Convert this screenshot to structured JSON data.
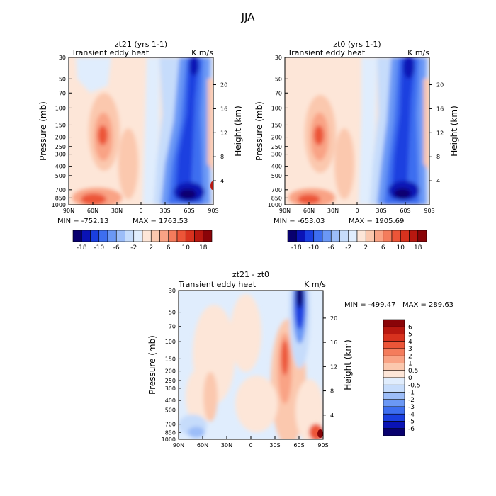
{
  "figure_title": "JJA",
  "chart_data": [
    {
      "type": "heatmap",
      "title": "zt21 (yrs 1-1)",
      "subtitle_left": "Transient eddy heat",
      "subtitle_right": "K m/s",
      "xlabel": "",
      "ylabel": "Pressure (mb)",
      "ylabel_right": "Height (km)",
      "x_ticks": [
        "90N",
        "60N",
        "30N",
        "0",
        "30S",
        "60S",
        "90S"
      ],
      "y_ticks": [
        30,
        50,
        70,
        100,
        150,
        200,
        250,
        300,
        400,
        500,
        700,
        850,
        1000
      ],
      "y_ticks_right": [
        4,
        8,
        12,
        16,
        20
      ],
      "min_label": "MIN = -752.13",
      "max_label": "MAX = 1763.53",
      "colorbar_labels": [
        "-18",
        "-10",
        "-6",
        "-2",
        "2",
        "6",
        "10",
        "18"
      ],
      "colorbar_orientation": "horizontal"
    },
    {
      "type": "heatmap",
      "title": "zt0 (yrs 1-1)",
      "subtitle_left": "Transient eddy heat",
      "subtitle_right": "K m/s",
      "xlabel": "",
      "ylabel": "Pressure (mb)",
      "ylabel_right": "Height (km)",
      "x_ticks": [
        "90N",
        "60N",
        "30N",
        "0",
        "30S",
        "60S",
        "90S"
      ],
      "y_ticks": [
        30,
        50,
        70,
        100,
        150,
        200,
        250,
        300,
        400,
        500,
        700,
        850,
        1000
      ],
      "y_ticks_right": [
        4,
        8,
        12,
        16,
        20
      ],
      "min_label": "MIN = -653.03",
      "max_label": "MAX = 1905.69",
      "colorbar_labels": [
        "-18",
        "-10",
        "-6",
        "-2",
        "2",
        "6",
        "10",
        "18"
      ],
      "colorbar_orientation": "horizontal"
    },
    {
      "type": "heatmap",
      "title": "zt21 - zt0",
      "subtitle_left": "Transient eddy heat",
      "subtitle_right": "K m/s",
      "xlabel": "",
      "ylabel": "Pressure (mb)",
      "ylabel_right": "Height (km)",
      "x_ticks": [
        "90N",
        "60N",
        "30N",
        "0",
        "30S",
        "60S",
        "90S"
      ],
      "y_ticks": [
        30,
        50,
        70,
        100,
        150,
        200,
        250,
        300,
        400,
        500,
        700,
        850,
        1000
      ],
      "y_ticks_right": [
        4,
        8,
        12,
        16,
        20
      ],
      "min_label": "MIN = -499.47",
      "max_label": "MAX = 289.63",
      "colorbar_labels": [
        "6",
        "5",
        "4",
        "3",
        "2",
        "1",
        "0.5",
        "0",
        "-0.5",
        "-1",
        "-2",
        "-3",
        "-4",
        "-5",
        "-6"
      ],
      "colorbar_orientation": "vertical"
    }
  ],
  "colors": {
    "hcolorbar": [
      "#08006e",
      "#0a13b5",
      "#1a3fe0",
      "#3d6ef0",
      "#6b98f5",
      "#9cbdf8",
      "#c6dcfb",
      "#e0edfd",
      "#fde6d8",
      "#fbc8ae",
      "#f9a385",
      "#f47c5c",
      "#ec5538",
      "#d8321e",
      "#b81810",
      "#8a0408"
    ],
    "vcolorbar": [
      "#8a0408",
      "#b81810",
      "#d8321e",
      "#ec5538",
      "#f47c5c",
      "#f9a385",
      "#fbc8ae",
      "#fde6d8",
      "#e0edfd",
      "#c6dcfb",
      "#9cbdf8",
      "#6b98f5",
      "#3d6ef0",
      "#1a3fe0",
      "#0a13b5",
      "#08006e"
    ]
  }
}
